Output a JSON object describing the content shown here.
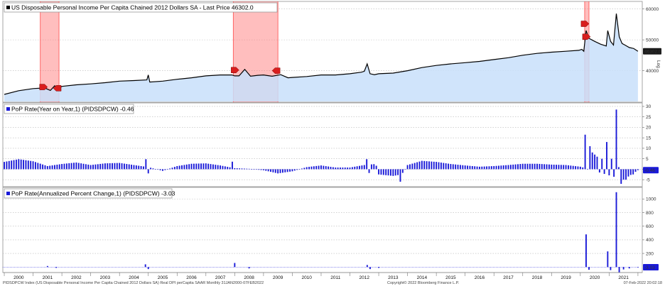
{
  "chart_data": [
    {
      "type": "area",
      "legend": "US Disposable Personal Income Per Capita Chained 2012 Dollars SA - Last Price 46302.0",
      "last_value_label": "46302.0",
      "ylim": [
        30000,
        62000
      ],
      "yticks": [
        40000,
        50000,
        60000
      ],
      "ylabel_side": "Log",
      "series": [
        {
          "name": "US Disposable Personal Income Per Capita Chained 2012 Dollars SA",
          "color": "#000000",
          "fill": "#c8dffa",
          "points": [
            [
              2000.0,
              32300
            ],
            [
              2000.5,
              33500
            ],
            [
              2001.0,
              34200
            ],
            [
              2001.4,
              34400
            ],
            [
              2001.6,
              33600
            ],
            [
              2001.75,
              35100
            ],
            [
              2001.85,
              34000
            ],
            [
              2002.0,
              34900
            ],
            [
              2002.5,
              35400
            ],
            [
              2003.0,
              35700
            ],
            [
              2003.5,
              36100
            ],
            [
              2004.0,
              36600
            ],
            [
              2004.5,
              36800
            ],
            [
              2004.95,
              37000
            ],
            [
              2005.0,
              38600
            ],
            [
              2005.05,
              36300
            ],
            [
              2005.5,
              36600
            ],
            [
              2006.0,
              37200
            ],
            [
              2006.5,
              37700
            ],
            [
              2007.0,
              38300
            ],
            [
              2007.5,
              38600
            ],
            [
              2007.9,
              38600
            ],
            [
              2008.0,
              38300
            ],
            [
              2008.15,
              38300
            ],
            [
              2008.35,
              40400
            ],
            [
              2008.55,
              38200
            ],
            [
              2008.8,
              38500
            ],
            [
              2009.0,
              38600
            ],
            [
              2009.3,
              38200
            ],
            [
              2009.6,
              38700
            ],
            [
              2009.85,
              37700
            ],
            [
              2010.0,
              37800
            ],
            [
              2010.5,
              38100
            ],
            [
              2011.0,
              38600
            ],
            [
              2011.5,
              38600
            ],
            [
              2012.0,
              39000
            ],
            [
              2012.4,
              39500
            ],
            [
              2012.5,
              39800
            ],
            [
              2012.6,
              42200
            ],
            [
              2012.7,
              39000
            ],
            [
              2012.85,
              38700
            ],
            [
              2013.0,
              39000
            ],
            [
              2013.5,
              39200
            ],
            [
              2014.0,
              40000
            ],
            [
              2014.5,
              41000
            ],
            [
              2015.0,
              41700
            ],
            [
              2015.5,
              42200
            ],
            [
              2016.0,
              42600
            ],
            [
              2016.5,
              43000
            ],
            [
              2017.0,
              43600
            ],
            [
              2017.5,
              44200
            ],
            [
              2018.0,
              45000
            ],
            [
              2018.5,
              45600
            ],
            [
              2019.0,
              46000
            ],
            [
              2019.5,
              46300
            ],
            [
              2019.95,
              46600
            ],
            [
              2020.05,
              46900
            ],
            [
              2020.12,
              46300
            ],
            [
              2020.2,
              53000
            ],
            [
              2020.3,
              50500
            ],
            [
              2020.5,
              49500
            ],
            [
              2020.7,
              48600
            ],
            [
              2020.9,
              48000
            ],
            [
              2020.95,
              53000
            ],
            [
              2021.05,
              49500
            ],
            [
              2021.15,
              48300
            ],
            [
              2021.25,
              58500
            ],
            [
              2021.35,
              51000
            ],
            [
              2021.45,
              48800
            ],
            [
              2021.55,
              48300
            ],
            [
              2021.7,
              47500
            ],
            [
              2021.85,
              47200
            ],
            [
              2022.0,
              46302
            ]
          ]
        }
      ],
      "recession_bands": [
        [
          2001.25,
          2001.9
        ],
        [
          2007.95,
          2009.5
        ],
        [
          2020.15,
          2020.3
        ]
      ],
      "markers": [
        {
          "x": 2001.35,
          "y": 34700,
          "dir": "right"
        },
        {
          "x": 2001.85,
          "y": 34300,
          "dir": "left"
        },
        {
          "x": 2008.0,
          "y": 40200,
          "dir": "right"
        },
        {
          "x": 2009.45,
          "y": 40000,
          "dir": "left"
        },
        {
          "x": 2020.15,
          "y": 55200,
          "dir": "right"
        },
        {
          "x": 2020.2,
          "y": 51000,
          "dir": "right"
        }
      ]
    },
    {
      "type": "bar",
      "legend": "PoP Rate(Year on Year,1) (PIDSDPCW) -0.46",
      "last_value_label": "-0.46",
      "ylim": [
        -8,
        31
      ],
      "yticks": [
        -5,
        0,
        5,
        10,
        15,
        20,
        25,
        30
      ],
      "series": [
        {
          "name": "PoP Rate(Year on Year,1) (PIDSDPCW)",
          "color": "#1a1ad8",
          "baseline_monthly": [
            [
              2000.0,
              3.5
            ],
            [
              2000.5,
              4.8
            ],
            [
              2001.0,
              3.8
            ],
            [
              2001.5,
              1.5
            ],
            [
              2002.0,
              2.5
            ],
            [
              2002.5,
              3.2
            ],
            [
              2003.0,
              2.0
            ],
            [
              2003.5,
              2.8
            ],
            [
              2004.0,
              3.0
            ],
            [
              2004.5,
              2.0
            ],
            [
              2005.0,
              1.0
            ],
            [
              2005.5,
              -0.8
            ],
            [
              2006.0,
              1.5
            ],
            [
              2006.5,
              2.6
            ],
            [
              2007.0,
              2.8
            ],
            [
              2007.5,
              1.8
            ],
            [
              2008.0,
              0.5
            ],
            [
              2008.5,
              0.2
            ],
            [
              2009.0,
              -0.5
            ],
            [
              2009.5,
              -2.0
            ],
            [
              2010.0,
              -1.0
            ],
            [
              2010.5,
              1.0
            ],
            [
              2011.0,
              1.8
            ],
            [
              2011.5,
              0.8
            ],
            [
              2012.0,
              0.8
            ],
            [
              2012.5,
              2.0
            ],
            [
              2012.9,
              2.5
            ],
            [
              2013.0,
              -2.5
            ],
            [
              2013.5,
              -3.2
            ],
            [
              2013.8,
              -2.5
            ],
            [
              2014.0,
              2.0
            ],
            [
              2014.5,
              4.0
            ],
            [
              2015.0,
              3.5
            ],
            [
              2015.5,
              2.5
            ],
            [
              2016.0,
              1.8
            ],
            [
              2016.5,
              1.2
            ],
            [
              2017.0,
              1.5
            ],
            [
              2017.5,
              2.0
            ],
            [
              2018.0,
              2.6
            ],
            [
              2018.5,
              2.6
            ],
            [
              2019.0,
              2.2
            ],
            [
              2019.5,
              2.0
            ],
            [
              2020.0,
              1.2
            ],
            [
              2021.5,
              -5.0
            ],
            [
              2022.0,
              -0.46
            ]
          ],
          "spikes": [
            [
              2004.9,
              4.8
            ],
            [
              2005.0,
              -2.0
            ],
            [
              2007.9,
              3.6
            ],
            [
              2012.6,
              4.8
            ],
            [
              2012.7,
              -1.8
            ],
            [
              2013.75,
              -6.0
            ],
            [
              2020.2,
              16.5
            ],
            [
              2020.3,
              11.0
            ],
            [
              2020.4,
              8.0
            ],
            [
              2020.5,
              7.0
            ],
            [
              2020.6,
              6.0
            ],
            [
              2020.75,
              5.0
            ],
            [
              2020.95,
              13.0
            ],
            [
              2021.05,
              5.0
            ],
            [
              2021.25,
              28.5
            ],
            [
              2021.35,
              1.0
            ],
            [
              2021.45,
              -7.0
            ],
            [
              2021.55,
              -5.0
            ],
            [
              2021.65,
              -3.5
            ],
            [
              2021.8,
              -2.5
            ]
          ]
        }
      ]
    },
    {
      "type": "bar",
      "legend": "PoP Rate(Annualized Percent Change,1) (PIDSDPCW) -3.03",
      "last_value_label": "-3.03",
      "ylim": [
        -60,
        1150
      ],
      "yticks": [
        200,
        400,
        600,
        800,
        1000
      ],
      "series": [
        {
          "name": "PoP Rate(Annualized Percent Change,1) (PIDSDPCW)",
          "color": "#1a1ad8",
          "spikes": [
            [
              2001.5,
              15
            ],
            [
              2001.8,
              -12
            ],
            [
              2004.9,
              40
            ],
            [
              2005.0,
              -30
            ],
            [
              2008.0,
              60
            ],
            [
              2008.5,
              -20
            ],
            [
              2012.6,
              30
            ],
            [
              2012.7,
              -30
            ],
            [
              2013.0,
              -12
            ],
            [
              2020.2,
              480
            ],
            [
              2020.3,
              -40
            ],
            [
              2020.95,
              230
            ],
            [
              2021.05,
              -45
            ],
            [
              2021.25,
              1100
            ],
            [
              2021.35,
              -80
            ],
            [
              2021.5,
              -35
            ],
            [
              2021.7,
              -20
            ],
            [
              2022.0,
              -3.03
            ]
          ]
        }
      ]
    }
  ],
  "xaxis": {
    "xlim": [
      1999.95,
      2022.15
    ],
    "ticks": [
      {
        "x": 2000.5,
        "label": "2000"
      },
      {
        "x": 2001.5,
        "label": "2001"
      },
      {
        "x": 2002.5,
        "label": "2002"
      },
      {
        "x": 2003.5,
        "label": "2003"
      },
      {
        "x": 2004.5,
        "label": "2004"
      },
      {
        "x": 2005.5,
        "label": "2005"
      },
      {
        "x": 2006.5,
        "label": "2006"
      },
      {
        "x": 2007.5,
        "label": "2007"
      },
      {
        "x": 2008.5,
        "label": "2008"
      },
      {
        "x": 2009.5,
        "label": "2009"
      },
      {
        "x": 2010.5,
        "label": "2010"
      },
      {
        "x": 2011.5,
        "label": "2011"
      },
      {
        "x": 2012.5,
        "label": "2012"
      },
      {
        "x": 2013.5,
        "label": "2013"
      },
      {
        "x": 2014.5,
        "label": "2014"
      },
      {
        "x": 2015.5,
        "label": "2015"
      },
      {
        "x": 2016.5,
        "label": "2016"
      },
      {
        "x": 2017.5,
        "label": "2017"
      },
      {
        "x": 2018.5,
        "label": "2018"
      },
      {
        "x": 2019.5,
        "label": "2019"
      },
      {
        "x": 2020.5,
        "label": "2020"
      },
      {
        "x": 2021.5,
        "label": "2021"
      }
    ]
  },
  "footer": {
    "left": "PIDSDPCW Index (US Disposable Personal Income Per Capita Chained 2012 Dollars SA) Real DPI perCapita SAAR  Monthly 31JAN2000-07FEB2022",
    "center": "Copyright© 2022 Bloomberg Finance L.P.",
    "right": "07-Feb-2022 20:02:18"
  },
  "colors": {
    "line": "#000000",
    "area_fill": "#c8dffa",
    "bars": "#1a1ad8",
    "recession": "#ff6f6f",
    "marker": "#d91e1e",
    "value_tag_dark": "#1a1a1a",
    "value_tag_blue": "#1a1ad8"
  }
}
